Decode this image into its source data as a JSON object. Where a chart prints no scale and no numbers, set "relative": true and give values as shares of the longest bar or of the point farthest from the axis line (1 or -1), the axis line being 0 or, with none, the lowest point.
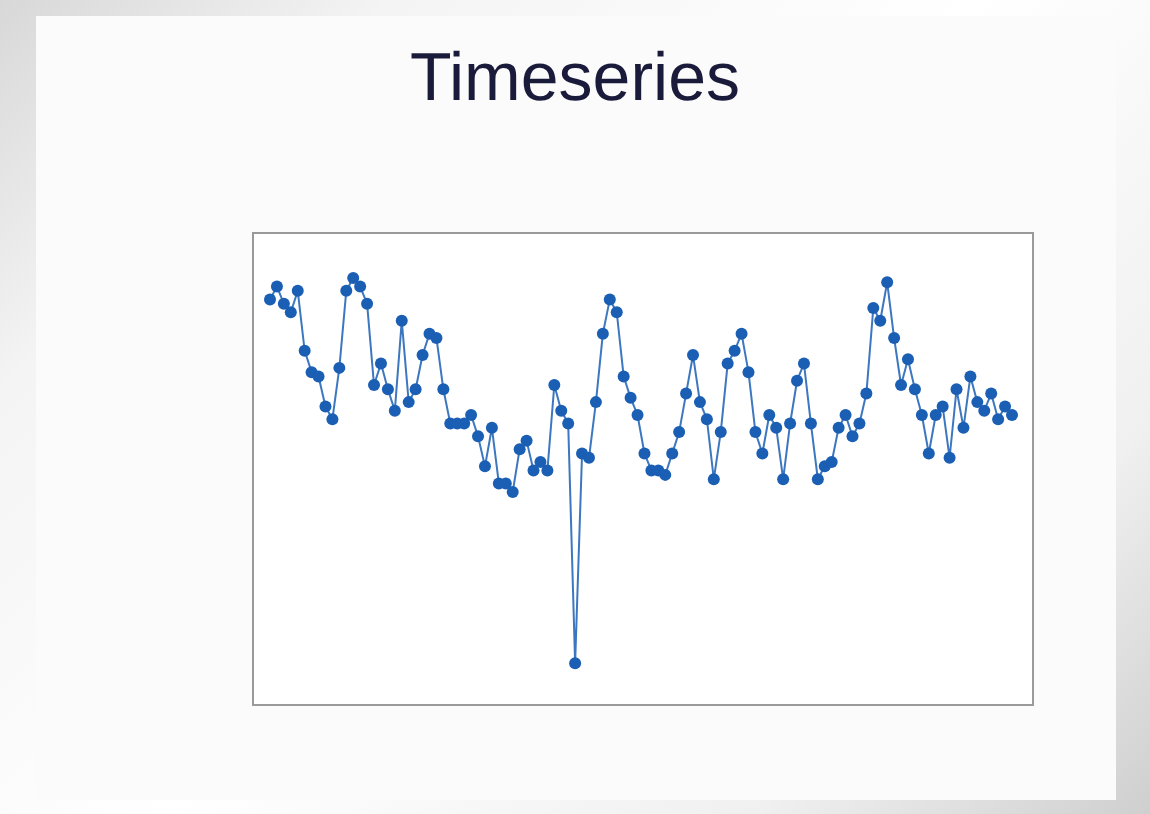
{
  "chart_data": {
    "type": "line",
    "title": "Timeseries",
    "relative": true,
    "tick_labels": false,
    "marker": "circle",
    "line_style": "solid",
    "grid": false,
    "legend": false,
    "categories": [
      null,
      null,
      null,
      null,
      null,
      null,
      null,
      null,
      null,
      null,
      null,
      null,
      null,
      null,
      null,
      null,
      null,
      null,
      null,
      null,
      null,
      null,
      null,
      null,
      null,
      null,
      null,
      null,
      null,
      null,
      null,
      null,
      null,
      null,
      null,
      null,
      null,
      null,
      null,
      null,
      null,
      null,
      null,
      null,
      null,
      null,
      null,
      null,
      null,
      null,
      null,
      null,
      null,
      null,
      null,
      null,
      null,
      null,
      null,
      null,
      null,
      null,
      null,
      null,
      null,
      null,
      null,
      null,
      null,
      null,
      null,
      null,
      null,
      null,
      null,
      null,
      null,
      null,
      null,
      null,
      null,
      null,
      null,
      null,
      null,
      null,
      null,
      null,
      null,
      null,
      null,
      null,
      null,
      null,
      null,
      null,
      null,
      null,
      null,
      null,
      null,
      null,
      null,
      null,
      null,
      null,
      null,
      null
    ],
    "series": [
      {
        "color": "#1a5fb4",
        "values": [
          0.95,
          0.98,
          0.94,
          0.92,
          0.97,
          0.83,
          0.78,
          0.77,
          0.7,
          0.67,
          0.79,
          0.97,
          1,
          0.98,
          0.94,
          0.75,
          0.8,
          0.74,
          0.69,
          0.9,
          0.71,
          0.74,
          0.82,
          0.87,
          0.86,
          0.74,
          0.66,
          0.66,
          0.66,
          0.68,
          0.63,
          0.56,
          0.65,
          0.52,
          0.52,
          0.5,
          0.6,
          0.62,
          0.55,
          0.57,
          0.55,
          0.75,
          0.69,
          0.66,
          0.1,
          0.59,
          0.58,
          0.71,
          0.87,
          0.95,
          0.92,
          0.77,
          0.72,
          0.68,
          0.59,
          0.55,
          0.55,
          0.54,
          0.59,
          0.64,
          0.73,
          0.82,
          0.71,
          0.67,
          0.53,
          0.64,
          0.8,
          0.83,
          0.87,
          0.78,
          0.64,
          0.59,
          0.68,
          0.65,
          0.53,
          0.66,
          0.76,
          0.8,
          0.66,
          0.53,
          0.56,
          0.57,
          0.65,
          0.68,
          0.63,
          0.66,
          0.73,
          0.93,
          0.9,
          0.99,
          0.86,
          0.75,
          0.81,
          0.74,
          0.68,
          0.59,
          0.68,
          0.7,
          0.58,
          0.74,
          0.65,
          0.77,
          0.71,
          0.69,
          0.73,
          0.67,
          0.7,
          0.68
        ]
      }
    ]
  }
}
